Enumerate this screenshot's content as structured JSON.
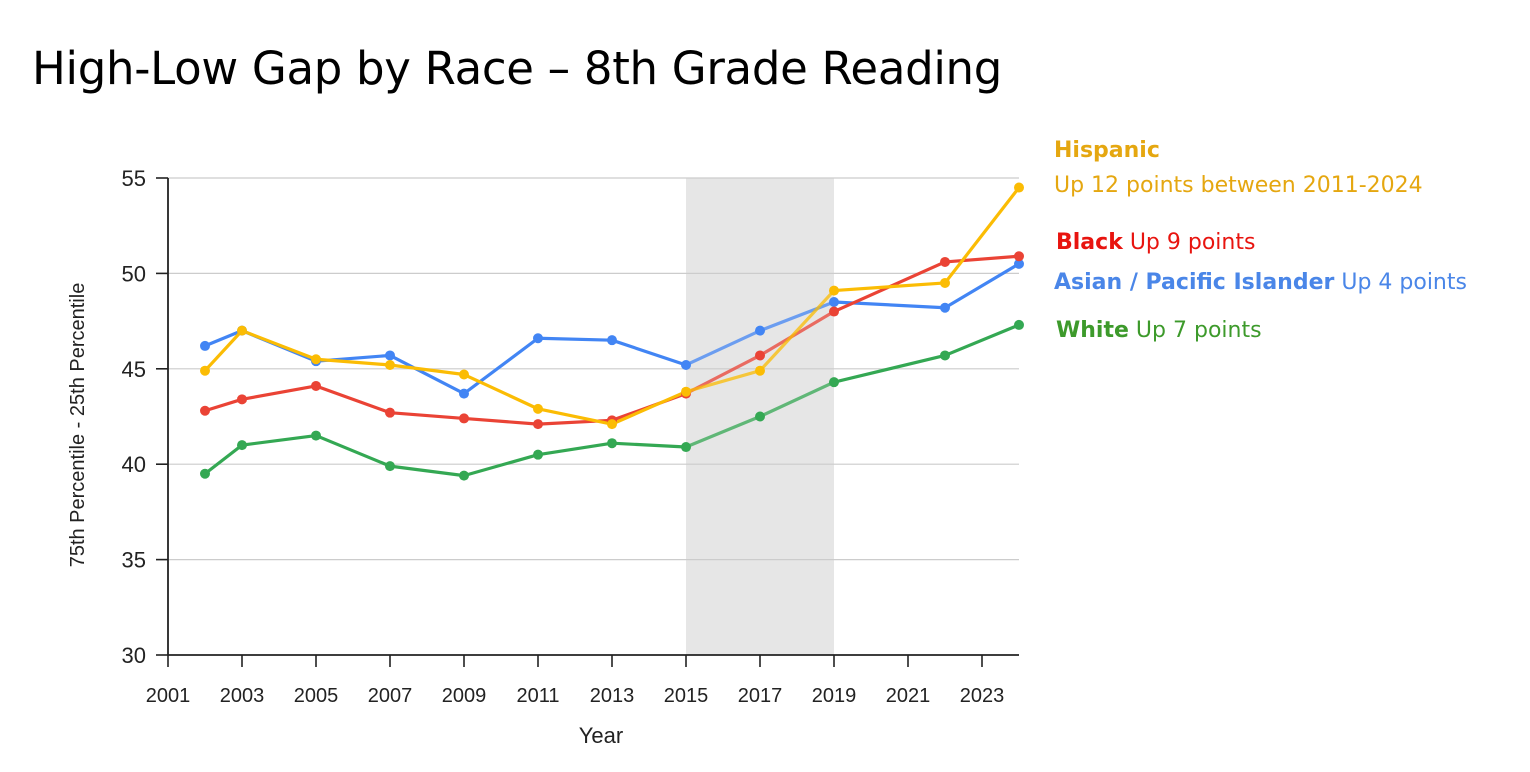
{
  "title": "High-Low Gap by Race – 8th Grade Reading",
  "colors": {
    "hispanic": "#FBBC04",
    "black": "#EA4335",
    "asian": "#4285F4",
    "white": "#34A853",
    "hispanic_label": "#E5A710",
    "black_label": "#E8140F",
    "asian_label": "#4A86E8",
    "white_label": "#3D9A2B",
    "shade": "#E6E6E6",
    "grid": "#CCCCCC"
  },
  "legend": {
    "hispanic": {
      "name": "Hispanic",
      "note": "Up 12 points between 2011-2024"
    },
    "black": {
      "name": "Black",
      "note": "Up 9 points"
    },
    "asian": {
      "name": "Asian / Pacific Islander",
      "note": "Up 4 points"
    },
    "white": {
      "name": "White",
      "note": "Up 7 points"
    }
  },
  "chart_data": {
    "type": "line",
    "title": "High-Low Gap by Race – 8th Grade Reading",
    "xlabel": "Year",
    "ylabel": "75th Percentile - 25th Percentile",
    "xlim": [
      2001,
      2024
    ],
    "ylim": [
      30,
      55
    ],
    "xticks": [
      2001,
      2003,
      2005,
      2007,
      2009,
      2011,
      2013,
      2015,
      2017,
      2019,
      2021,
      2023
    ],
    "yticks": [
      30,
      35,
      40,
      45,
      50,
      55
    ],
    "grid": true,
    "shaded_range": [
      2015,
      2019
    ],
    "series": [
      {
        "key": "asian",
        "name": "Asian / Pacific Islander",
        "x": [
          2002,
          2003,
          2005,
          2007,
          2009,
          2011,
          2013,
          2015,
          2017,
          2019,
          2022,
          2024
        ],
        "values": [
          46.2,
          47.0,
          45.4,
          45.7,
          43.7,
          46.6,
          46.5,
          45.2,
          47.0,
          48.5,
          48.2,
          50.5
        ]
      },
      {
        "key": "black",
        "name": "Black",
        "x": [
          2002,
          2003,
          2005,
          2007,
          2009,
          2011,
          2013,
          2015,
          2017,
          2019,
          2022,
          2024
        ],
        "values": [
          42.8,
          43.4,
          44.1,
          42.7,
          42.4,
          42.1,
          42.3,
          43.7,
          45.7,
          48.0,
          50.6,
          50.9
        ]
      },
      {
        "key": "white",
        "name": "White",
        "x": [
          2002,
          2003,
          2005,
          2007,
          2009,
          2011,
          2013,
          2015,
          2017,
          2019,
          2022,
          2024
        ],
        "values": [
          39.5,
          41.0,
          41.5,
          39.9,
          39.4,
          40.5,
          41.1,
          40.9,
          42.5,
          44.3,
          45.7,
          47.3
        ]
      },
      {
        "key": "hispanic",
        "name": "Hispanic",
        "x": [
          2002,
          2003,
          2005,
          2007,
          2009,
          2011,
          2013,
          2015,
          2017,
          2019,
          2022,
          2024
        ],
        "values": [
          44.9,
          47.0,
          45.5,
          45.2,
          44.7,
          42.9,
          42.1,
          43.8,
          44.9,
          49.1,
          49.5,
          54.5
        ]
      }
    ]
  }
}
